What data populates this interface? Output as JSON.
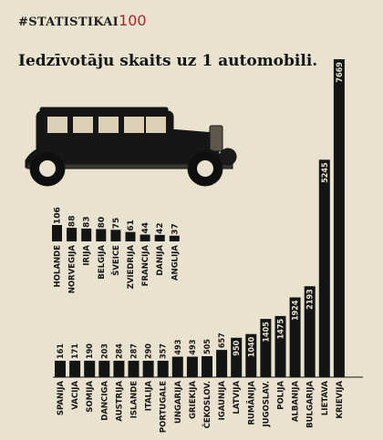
{
  "watermark": {
    "prefix": "#STATISTIKAI",
    "accent": "100",
    "accent_color": "#b0232a"
  },
  "title": "Iedzīvotāju skaits uz 1 automobili.",
  "chart_data": {
    "type": "bar",
    "title": "Iedzīvotāju skaits uz 1 automobili.",
    "xlabel": "",
    "ylabel": "",
    "ylim": [
      0,
      8000
    ],
    "grid": false,
    "categories": [
      "SPANIJA",
      "VACIJA",
      "SOMIJA",
      "DANCIGA",
      "AUSTRIJA",
      "ISLANDE",
      "ITALIJA",
      "PORTUGALE",
      "UNGARIJA",
      "GRIEKIJA",
      "ČEKOSLOV.",
      "IGAUNIJA",
      "LATVIJA",
      "RUMĀNIJA",
      "JUGOSLAV.",
      "POLIJA",
      "ALBANIJA",
      "BULGARIJA",
      "LIETAVA",
      "KRIEVIJA"
    ],
    "values": [
      161,
      171,
      190,
      203,
      284,
      287,
      290,
      357,
      493,
      493,
      505,
      657,
      950,
      1040,
      1405,
      1475,
      1924,
      2193,
      5245,
      7669
    ],
    "value_labels": [
      "161",
      "171",
      "190",
      "203",
      "284",
      "287",
      "290",
      "357",
      "493",
      "493",
      "505",
      "657",
      "950",
      "1040",
      "1405",
      "1475",
      "1924",
      "2193",
      "5245",
      "7669"
    ],
    "inset": {
      "type": "bar",
      "categories": [
        "HOLANDE",
        "NORVEGIJA",
        "IRIJA",
        "BELGIJA",
        "ŠVEICE",
        "ZVIEDRIJA",
        "FRANCIJA",
        "DANIJA",
        "ANGLIJA"
      ],
      "values": [
        106,
        88,
        83,
        80,
        75,
        61,
        44,
        42,
        37
      ],
      "value_labels": [
        "106",
        "88",
        "83",
        "80",
        "75",
        "61",
        "44",
        "42",
        "37"
      ]
    }
  }
}
